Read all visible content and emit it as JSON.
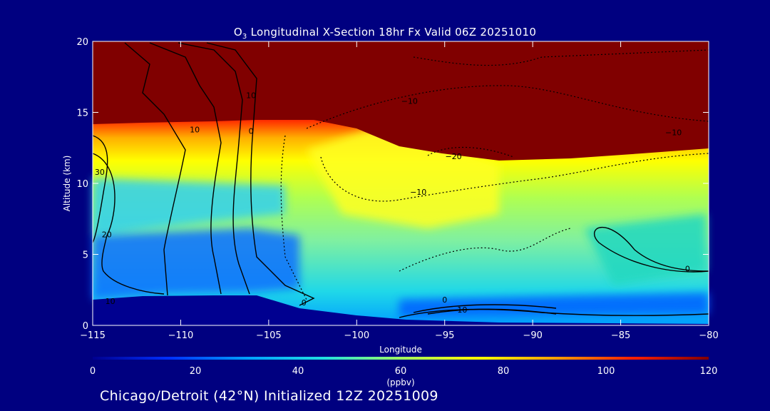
{
  "chart_data": {
    "type": "heatmap",
    "title_pre": "O",
    "title_sub": "3",
    "title_post": " Longitudinal X-Section 18hr  Fx Valid 06Z 20251010",
    "xlabel": "Longitude",
    "ylabel": "Altitude (km)",
    "xlim": [
      -115,
      -80
    ],
    "ylim": [
      0,
      20
    ],
    "x_ticks": [
      "−115",
      "−110",
      "−105",
      "−100",
      "−95",
      "−90",
      "−85",
      "−80"
    ],
    "x_tick_values": [
      -115,
      -110,
      -105,
      -100,
      -95,
      -90,
      -85,
      -80
    ],
    "y_ticks": [
      "0",
      "5",
      "10",
      "15",
      "20"
    ],
    "y_tick_values": [
      0,
      5,
      10,
      15,
      20
    ],
    "colorbar": {
      "label": "(ppbv)",
      "min": 0,
      "max": 120,
      "tick_labels": [
        "0",
        "20",
        "40",
        "60",
        "80",
        "100",
        "120"
      ],
      "tick_values": [
        0,
        20,
        40,
        60,
        80,
        100,
        120
      ],
      "colors": [
        "#00008f",
        "#0030ff",
        "#00a0ff",
        "#20e0e0",
        "#a0ff60",
        "#ffff00",
        "#ffa000",
        "#ff2000",
        "#800000"
      ]
    },
    "contour_labels": [
      {
        "text": "10",
        "lon": -114.0,
        "alt": 1.5
      },
      {
        "text": "20",
        "lon": -114.2,
        "alt": 6.2
      },
      {
        "text": "30",
        "lon": -114.6,
        "alt": 10.6
      },
      {
        "text": "10",
        "lon": -109.2,
        "alt": 13.6
      },
      {
        "text": "10",
        "lon": -106.0,
        "alt": 16.0
      },
      {
        "text": "0",
        "lon": -106.0,
        "alt": 13.5
      },
      {
        "text": "0",
        "lon": -103.0,
        "alt": 1.4
      },
      {
        "text": "−10",
        "lon": -97.0,
        "alt": 15.6
      },
      {
        "text": "−20",
        "lon": -94.5,
        "alt": 11.7
      },
      {
        "text": "−10",
        "lon": -96.5,
        "alt": 9.2
      },
      {
        "text": "0",
        "lon": -95.0,
        "alt": 1.6
      },
      {
        "text": "10",
        "lon": -94.0,
        "alt": 0.9
      },
      {
        "text": "−10",
        "lon": -82.0,
        "alt": 13.4
      },
      {
        "text": "0",
        "lon": -81.2,
        "alt": 3.8
      }
    ]
  },
  "footer": "Chicago/Detroit (42°N) Initialized 12Z 20251009"
}
